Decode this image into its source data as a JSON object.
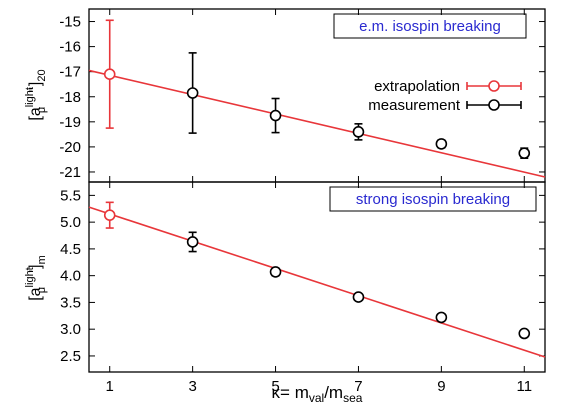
{
  "chart_data": [
    {
      "type": "scatter",
      "panel": "top",
      "ylabel_parts": {
        "base": "[a",
        "sup": "light",
        "sub": "μ",
        "close": "]",
        "prime": "\"",
        "sub2": "20"
      },
      "annotation": "e.m. isospin breaking",
      "ylim": [
        -21.4,
        -14.5
      ],
      "yticks": [
        -15,
        -16,
        -17,
        -18,
        -19,
        -20,
        -21
      ],
      "xlim": [
        0.5,
        11.5
      ],
      "xticks": [
        1,
        3,
        5,
        7,
        9,
        11
      ],
      "grid": false,
      "legend_position": "top-right",
      "series": [
        {
          "name": "extrapolation",
          "color": "#e8363a",
          "points": [
            {
              "x": 1,
              "y": -17.1,
              "err": 2.15
            }
          ]
        },
        {
          "name": "measurement",
          "color": "#000000",
          "points": [
            {
              "x": 3,
              "y": -17.85,
              "err": 1.6
            },
            {
              "x": 5,
              "y": -18.75,
              "err": 0.68
            },
            {
              "x": 7,
              "y": -19.4,
              "err": 0.32
            },
            {
              "x": 9,
              "y": -19.88,
              "err": 0.15
            },
            {
              "x": 11,
              "y": -20.25,
              "err": 0.2
            }
          ]
        }
      ],
      "fit_line": {
        "color": "#e8363a",
        "x": [
          0.5,
          11.5
        ],
        "y": [
          -16.95,
          -21.2
        ]
      }
    },
    {
      "type": "scatter",
      "panel": "bottom",
      "ylabel_parts": {
        "base": "[a",
        "sup": "light",
        "sub": "μ",
        "close": "]",
        "prime": "'",
        "sub2": "m"
      },
      "annotation": "strong isospin breaking",
      "ylim": [
        2.2,
        5.75
      ],
      "yticks": [
        5.5,
        5.0,
        4.5,
        4.0,
        3.5,
        3.0,
        2.5
      ],
      "ytick_labels": [
        "5.5",
        "5.0",
        "4.5",
        "4.0",
        "3.5",
        "3.0",
        "2.5"
      ],
      "xlim": [
        0.5,
        11.5
      ],
      "xticks": [
        1,
        3,
        5,
        7,
        9,
        11
      ],
      "xtick_labels": [
        "1",
        "3",
        "5",
        "7",
        "9",
        "11"
      ],
      "xlabel_parts": {
        "base": "κ= m",
        "sub1": "val",
        "mid": "/m",
        "sub2": "sea"
      },
      "grid": false,
      "series": [
        {
          "name": "extrapolation",
          "color": "#e8363a",
          "points": [
            {
              "x": 1,
              "y": 5.13,
              "err": 0.24
            }
          ]
        },
        {
          "name": "measurement",
          "color": "#000000",
          "points": [
            {
              "x": 3,
              "y": 4.63,
              "err": 0.18
            },
            {
              "x": 5,
              "y": 4.07,
              "err": 0.07
            },
            {
              "x": 7,
              "y": 3.6,
              "err": 0.05
            },
            {
              "x": 9,
              "y": 3.22,
              "err": 0.03
            },
            {
              "x": 11,
              "y": 2.92,
              "err": 0.03
            }
          ]
        }
      ],
      "fit_line": {
        "color": "#e8363a",
        "x": [
          0.5,
          11.5
        ],
        "y": [
          5.28,
          2.48
        ]
      }
    }
  ],
  "annotation_color": "#2a2ad0"
}
